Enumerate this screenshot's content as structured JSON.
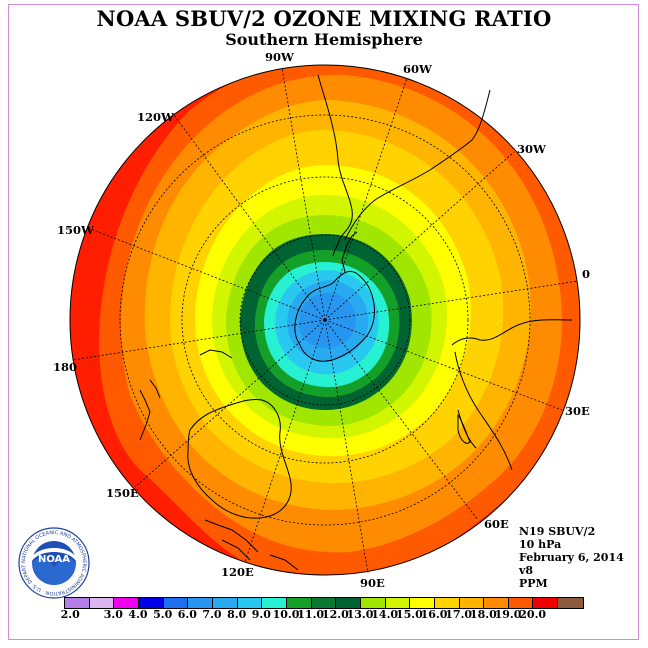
{
  "title": "NOAA SBUV/2 OZONE MIXING RATIO",
  "subtitle": "Southern Hemisphere",
  "longitude_labels": [
    "90W",
    "60W",
    "120W",
    "30W",
    "150W",
    "0",
    "180",
    "30E",
    "150E",
    "60E",
    "120E",
    "90E"
  ],
  "info": {
    "instrument": "N19 SBUV/2",
    "pressure": "10 hPa",
    "date": "February 6, 2014",
    "version": "v8",
    "units": "PPM"
  },
  "logo": {
    "text": "NOAA",
    "ring_text": "NATIONAL OCEANIC AND ATMOSPHERIC ADMINISTRATION · U.S. DEPARTMENT OF COMMERCE"
  },
  "colorbar": {
    "tick_labels": [
      "2.0",
      "3.0",
      "4.0",
      "5.0",
      "6.0",
      "7.0",
      "8.0",
      "9.0",
      "10.0",
      "11.0",
      "12.0",
      "13.0",
      "14.0",
      "15.0",
      "16.0",
      "17.0",
      "18.0",
      "19.0",
      "20.0"
    ],
    "colors": [
      "#b480e8",
      "#dcb4f0",
      "#f000f0",
      "#0000e6",
      "#1e6ef0",
      "#2896f0",
      "#28aaf0",
      "#28c8f0",
      "#28f0d2",
      "#14a028",
      "#0a7830",
      "#006432",
      "#a0e600",
      "#d2f500",
      "#ffff00",
      "#ffd200",
      "#ffb400",
      "#ff8c00",
      "#ff5a00",
      "#f00000",
      "#8c5a3c"
    ]
  },
  "contour_colors": {
    "outer": "#ff1e00",
    "ring_18": "#ff5a00",
    "ring_17": "#ff8c00",
    "ring_16": "#ffb400",
    "ring_15": "#ffd200",
    "ring_14": "#ffff00",
    "ring_13": "#d2f500",
    "ring_12": "#a0e600",
    "ring_11": "#006432",
    "ring_10": "#14a028",
    "ring_9": "#28f0d2",
    "ring_8": "#28c8f0",
    "ring_7": "#28aaf0",
    "ring_6": "#2896f0"
  }
}
